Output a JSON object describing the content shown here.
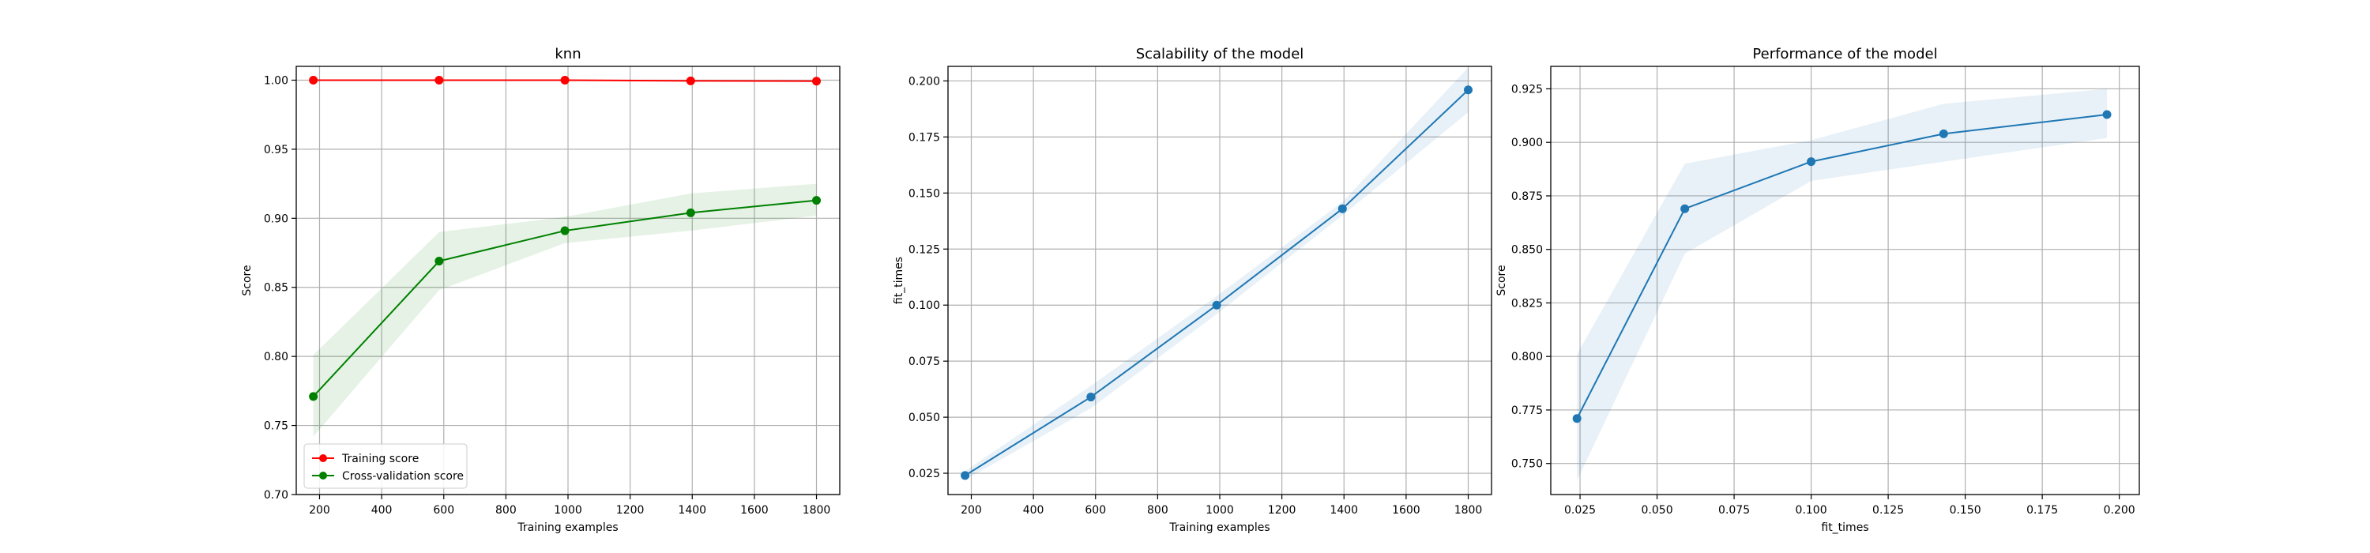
{
  "colors": {
    "training": "#ff0000",
    "training_band": "#ff0000",
    "cv": "#008000",
    "cv_band": "#008000",
    "blue": "#1f77b4",
    "blue_band": "#1f77b4",
    "grid": "#b0b0b0",
    "axis": "#000000"
  },
  "chart_data": [
    {
      "type": "line",
      "title": "knn",
      "xlabel": "Training examples",
      "ylabel": "Score",
      "xlim": [
        125,
        1875
      ],
      "ylim": [
        0.7,
        1.01
      ],
      "xticks": [
        200,
        400,
        600,
        800,
        1000,
        1200,
        1400,
        1600,
        1800
      ],
      "xtick_labels": [
        "200",
        "400",
        "600",
        "800",
        "1000",
        "1200",
        "1400",
        "1600",
        "1800"
      ],
      "yticks": [
        0.7,
        0.75,
        0.8,
        0.85,
        0.9,
        0.95,
        1.0
      ],
      "ytick_labels": [
        "0.70",
        "0.75",
        "0.80",
        "0.85",
        "0.90",
        "0.95",
        "1.00"
      ],
      "grid": true,
      "legend_position": "lower-left",
      "x": [
        180,
        585,
        990,
        1395,
        1800
      ],
      "series": [
        {
          "name": "Training score",
          "color_key": "training",
          "values": [
            1.0,
            1.0,
            1.0,
            0.9995,
            0.9993
          ],
          "band_lower": [
            1.0,
            1.0,
            1.0,
            0.999,
            0.9988
          ],
          "band_upper": [
            1.0,
            1.0,
            1.0,
            1.0,
            0.9998
          ]
        },
        {
          "name": "Cross-validation score",
          "color_key": "cv",
          "values": [
            0.771,
            0.869,
            0.891,
            0.904,
            0.913
          ],
          "band_lower": [
            0.742,
            0.848,
            0.882,
            0.891,
            0.902
          ],
          "band_upper": [
            0.801,
            0.89,
            0.901,
            0.918,
            0.925
          ]
        }
      ]
    },
    {
      "type": "line",
      "title": "Scalability of the model",
      "xlabel": "Training examples",
      "ylabel": "fit_times",
      "xlim": [
        125,
        1875
      ],
      "ylim": [
        0.0155,
        0.2065
      ],
      "xticks": [
        200,
        400,
        600,
        800,
        1000,
        1200,
        1400,
        1600,
        1800
      ],
      "xtick_labels": [
        "200",
        "400",
        "600",
        "800",
        "1000",
        "1200",
        "1400",
        "1600",
        "1800"
      ],
      "yticks": [
        0.025,
        0.05,
        0.075,
        0.1,
        0.125,
        0.15,
        0.175,
        0.2
      ],
      "ytick_labels": [
        "0.025",
        "0.050",
        "0.075",
        "0.100",
        "0.125",
        "0.150",
        "0.175",
        "0.200"
      ],
      "grid": true,
      "x": [
        180,
        585,
        990,
        1395,
        1800
      ],
      "series": [
        {
          "color_key": "blue",
          "values": [
            0.024,
            0.059,
            0.1,
            0.143,
            0.196
          ],
          "band_lower": [
            0.022,
            0.054,
            0.096,
            0.14,
            0.186
          ],
          "band_upper": [
            0.026,
            0.064,
            0.104,
            0.146,
            0.206
          ]
        }
      ]
    },
    {
      "type": "line",
      "title": "Performance of the model",
      "xlabel": "fit_times",
      "ylabel": "Score",
      "xlim": [
        0.0155,
        0.2065
      ],
      "ylim": [
        0.7355,
        0.9355
      ],
      "xticks": [
        0.025,
        0.05,
        0.075,
        0.1,
        0.125,
        0.15,
        0.175,
        0.2
      ],
      "xtick_labels": [
        "0.025",
        "0.050",
        "0.075",
        "0.100",
        "0.125",
        "0.150",
        "0.175",
        "0.200"
      ],
      "yticks": [
        0.75,
        0.775,
        0.8,
        0.825,
        0.85,
        0.875,
        0.9,
        0.925
      ],
      "ytick_labels": [
        "0.750",
        "0.775",
        "0.800",
        "0.825",
        "0.850",
        "0.875",
        "0.900",
        "0.925"
      ],
      "grid": true,
      "x": [
        0.024,
        0.059,
        0.1,
        0.143,
        0.196
      ],
      "series": [
        {
          "color_key": "blue",
          "values": [
            0.771,
            0.869,
            0.891,
            0.904,
            0.913
          ],
          "band_lower": [
            0.742,
            0.848,
            0.882,
            0.891,
            0.902
          ],
          "band_upper": [
            0.801,
            0.89,
            0.901,
            0.918,
            0.925
          ]
        }
      ]
    }
  ]
}
